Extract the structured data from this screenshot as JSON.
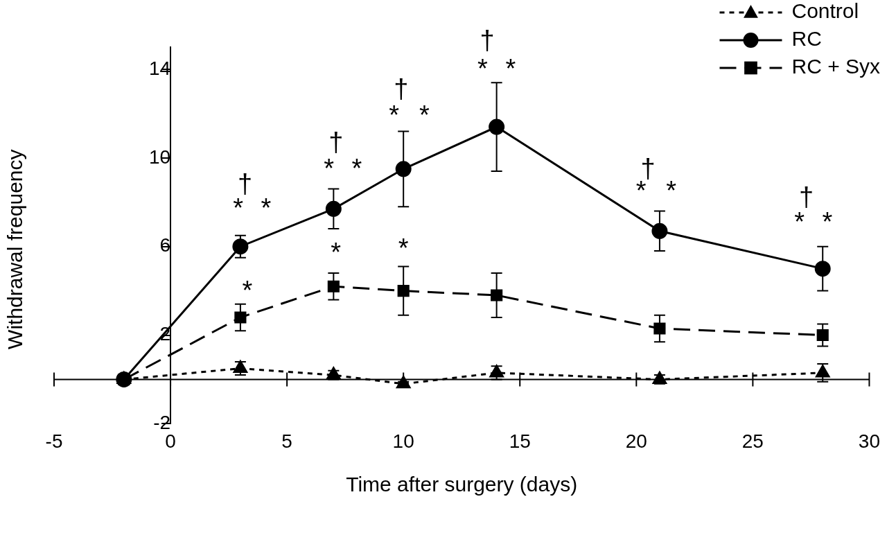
{
  "chart_data": {
    "type": "line",
    "x_label": "Time after surgery (days)",
    "y_label": "Withdrawal frequency",
    "x": [
      -2,
      3,
      7,
      10,
      14,
      21,
      28
    ],
    "series": [
      {
        "name": "Control",
        "color": "#000000",
        "marker": "triangle",
        "line_style": "dotted",
        "values": [
          0,
          0.5,
          0.2,
          -0.2,
          0.3,
          0,
          0.3
        ],
        "errors": [
          0,
          0.3,
          0.2,
          0.1,
          0.3,
          0.2,
          0.4
        ]
      },
      {
        "name": "RC",
        "color": "#000000",
        "marker": "circle",
        "line_style": "solid",
        "values": [
          0,
          6,
          7.7,
          9.5,
          11.4,
          6.7,
          5
        ],
        "errors": [
          0,
          0.5,
          0.9,
          1.7,
          2,
          0.9,
          1
        ]
      },
      {
        "name": "RC + Syx",
        "color": "#000000",
        "marker": "square",
        "line_style": "dashed",
        "values": [
          0,
          2.8,
          4.2,
          4.0,
          3.8,
          2.3,
          2.0
        ],
        "errors": [
          0,
          0.6,
          0.6,
          1.1,
          1.0,
          0.6,
          0.5
        ]
      }
    ],
    "xlim": [
      -5,
      30
    ],
    "xticks": [
      -5,
      0,
      5,
      10,
      15,
      20,
      25,
      30
    ],
    "ylim": [
      -2,
      15
    ],
    "yticks": [
      -2,
      2,
      6,
      10,
      14
    ],
    "grid": false,
    "legend": "upper right",
    "annotations": [
      {
        "x": 2.9,
        "y": 7.9,
        "text": "*"
      },
      {
        "x": 3.2,
        "y": 9.0,
        "text": "†"
      },
      {
        "x": 4.1,
        "y": 7.9,
        "text": "*"
      },
      {
        "x": 6.8,
        "y": 9.7,
        "text": "*"
      },
      {
        "x": 7.1,
        "y": 10.9,
        "text": "†"
      },
      {
        "x": 8.0,
        "y": 9.7,
        "text": "*"
      },
      {
        "x": 9.6,
        "y": 12.1,
        "text": "*"
      },
      {
        "x": 9.9,
        "y": 13.3,
        "text": "†"
      },
      {
        "x": 10.9,
        "y": 12.1,
        "text": "*"
      },
      {
        "x": 13.4,
        "y": 14.2,
        "text": "*"
      },
      {
        "x": 13.6,
        "y": 15.5,
        "text": "†"
      },
      {
        "x": 14.6,
        "y": 14.2,
        "text": "*"
      },
      {
        "x": 20.2,
        "y": 8.7,
        "text": "*"
      },
      {
        "x": 20.5,
        "y": 9.7,
        "text": "†"
      },
      {
        "x": 21.5,
        "y": 8.7,
        "text": "*"
      },
      {
        "x": 27.0,
        "y": 7.3,
        "text": "*"
      },
      {
        "x": 27.3,
        "y": 8.4,
        "text": "†"
      },
      {
        "x": 28.2,
        "y": 7.3,
        "text": "*"
      },
      {
        "x": 3.3,
        "y": 4.2,
        "text": "*"
      },
      {
        "x": 7.1,
        "y": 5.9,
        "text": "*"
      },
      {
        "x": 10.0,
        "y": 6.1,
        "text": "*"
      }
    ]
  }
}
